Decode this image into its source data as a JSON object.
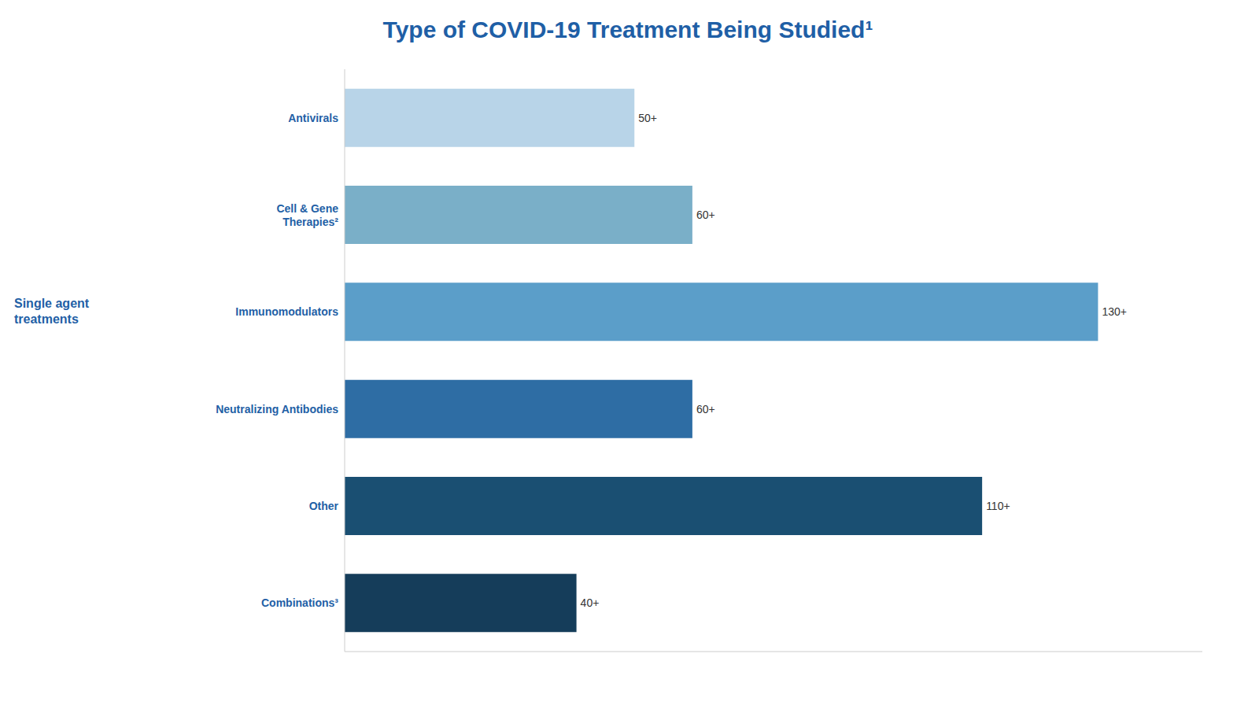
{
  "chart_data": {
    "type": "bar",
    "orientation": "horizontal",
    "title": "Type of COVID-19 Treatment Being Studied¹",
    "categories": [
      "Antivirals",
      "Cell & Gene\nTherapies²",
      "Immunomodulators",
      "Neutralizing Antibodies",
      "Other",
      "Combinations³"
    ],
    "values": [
      50,
      60,
      130,
      60,
      110,
      40
    ],
    "value_labels": [
      "50+",
      "60+",
      "130+",
      "60+",
      "110+",
      "40+"
    ],
    "data_labels": true,
    "colors": [
      "#b8d4e8",
      "#7aafc8",
      "#5b9ec9",
      "#2e6da4",
      "#1a4f72",
      "#153d5a"
    ],
    "color": "#1F5FA6",
    "annotations": [
      "Single agent\ntreatments"
    ],
    "xlim": [
      0,
      148
    ],
    "tick_labels": false
  }
}
